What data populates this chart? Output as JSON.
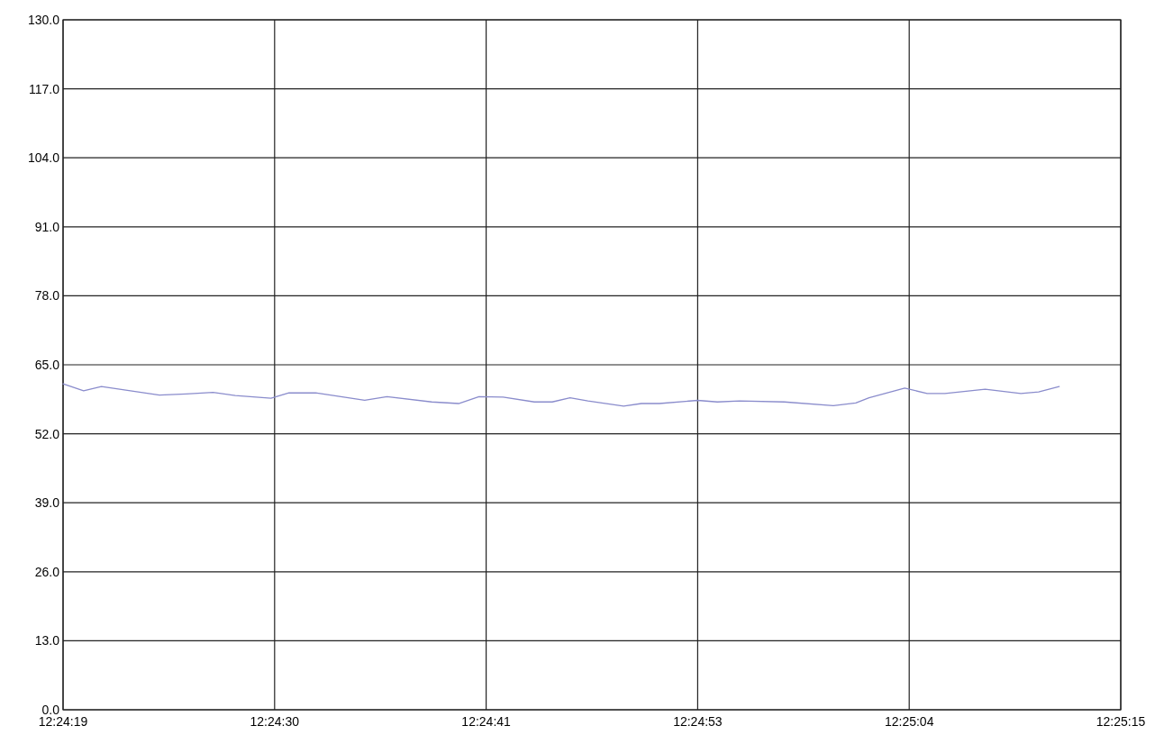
{
  "chart_data": {
    "type": "line",
    "x": [
      12.405278,
      12.40558,
      12.405842,
      12.406695,
      12.407089,
      12.407484,
      12.407811,
      12.408336,
      12.4086,
      12.408992,
      12.409714,
      12.410042,
      12.4107,
      12.411095,
      12.411395,
      12.41175,
      12.412209,
      12.412472,
      12.412734,
      12.412997,
      12.413522,
      12.413784,
      12.414047,
      12.414611,
      12.4149,
      12.415228,
      12.415886,
      12.416606,
      12.416936,
      12.417131,
      12.417656,
      12.417986,
      12.418247,
      12.418839,
      12.419364,
      12.419625,
      12.419928
    ],
    "series": [
      {
        "color": "#8a8ccc",
        "values": [
          61.4,
          60.1,
          60.9,
          59.3,
          59.5,
          59.8,
          59.2,
          58.7,
          59.7,
          59.7,
          58.3,
          59.0,
          58.0,
          57.7,
          59.0,
          58.9,
          58.0,
          58.0,
          58.8,
          58.2,
          57.2,
          57.7,
          57.7,
          58.3,
          58.0,
          58.2,
          58.0,
          57.3,
          57.8,
          58.8,
          60.6,
          59.6,
          59.6,
          60.4,
          59.6,
          59.9,
          60.9
        ]
      }
    ],
    "xlim": [
      12.405278,
      12.420833
    ],
    "xticks": [
      {
        "value": 12.405278,
        "label": "12:24:19"
      },
      {
        "value": 12.408389,
        "label": "12:24:30"
      },
      {
        "value": 12.4115,
        "label": "12:24:41"
      },
      {
        "value": 12.414611,
        "label": "12:24:53"
      },
      {
        "value": 12.417722,
        "label": "12:25:04"
      },
      {
        "value": 12.420833,
        "label": "12:25:15"
      }
    ],
    "ylim": [
      0,
      130
    ],
    "yticks": [
      {
        "value": 0,
        "label": "0.0"
      },
      {
        "value": 13,
        "label": "13.0"
      },
      {
        "value": 26,
        "label": "26.0"
      },
      {
        "value": 39,
        "label": "39.0"
      },
      {
        "value": 52,
        "label": "52.0"
      },
      {
        "value": 65,
        "label": "65.0"
      },
      {
        "value": 78,
        "label": "78.0"
      },
      {
        "value": 91,
        "label": "91.0"
      },
      {
        "value": 104,
        "label": "104.0"
      },
      {
        "value": 117,
        "label": "117.0"
      },
      {
        "value": 130,
        "label": "130.0"
      }
    ],
    "grid": true,
    "marker": "none",
    "line_style": "solid"
  }
}
